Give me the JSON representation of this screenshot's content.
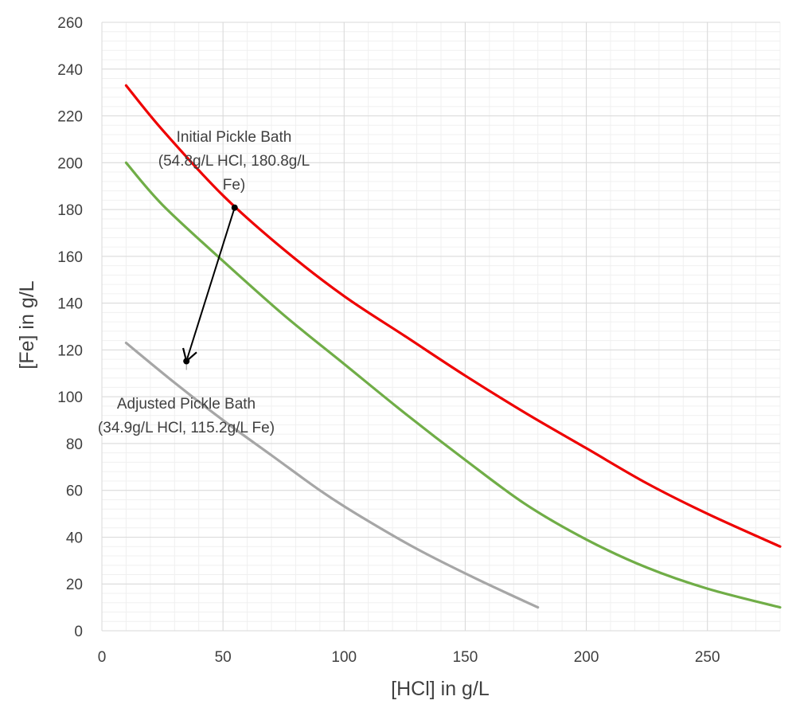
{
  "chart_data": {
    "type": "line",
    "xlabel": "[HCl] in g/L",
    "ylabel": "[Fe] in g/L",
    "xlim": [
      0,
      280
    ],
    "ylim": [
      0,
      260
    ],
    "x_ticks": [
      0,
      50,
      100,
      150,
      200,
      250
    ],
    "y_ticks": [
      0,
      20,
      40,
      60,
      80,
      100,
      120,
      140,
      160,
      180,
      200,
      220,
      240,
      260
    ],
    "grid": true,
    "series": [
      {
        "color": "#ee0000",
        "x": [
          10,
          25,
          50,
          75,
          100,
          125,
          150,
          175,
          200,
          225,
          250,
          280
        ],
        "y": [
          233,
          214,
          186,
          163,
          143,
          126,
          109,
          93,
          78,
          63,
          50,
          36
        ]
      },
      {
        "color": "#70ad47",
        "x": [
          10,
          25,
          50,
          75,
          100,
          125,
          150,
          175,
          200,
          225,
          250,
          280
        ],
        "y": [
          200,
          182,
          158,
          135,
          114,
          93,
          73,
          54,
          39,
          27,
          18,
          10
        ]
      },
      {
        "color": "#a6a6a6",
        "x": [
          10,
          30,
          50,
          70,
          90,
          105,
          130,
          155,
          180
        ],
        "y": [
          123,
          106,
          90,
          75,
          60,
          50,
          35,
          22,
          10
        ]
      }
    ],
    "points": [
      {
        "x": 54.8,
        "y": 180.8
      },
      {
        "x": 34.9,
        "y": 115.2
      }
    ],
    "annotations": {
      "initial": {
        "lines": [
          "Initial Pickle Bath",
          "(54.8g/L HCl, 180.8g/L",
          "Fe)"
        ]
      },
      "adjusted": {
        "lines": [
          "Adjusted Pickle Bath",
          "(34.9g/L HCl, 115.2g/L Fe)"
        ]
      }
    }
  }
}
